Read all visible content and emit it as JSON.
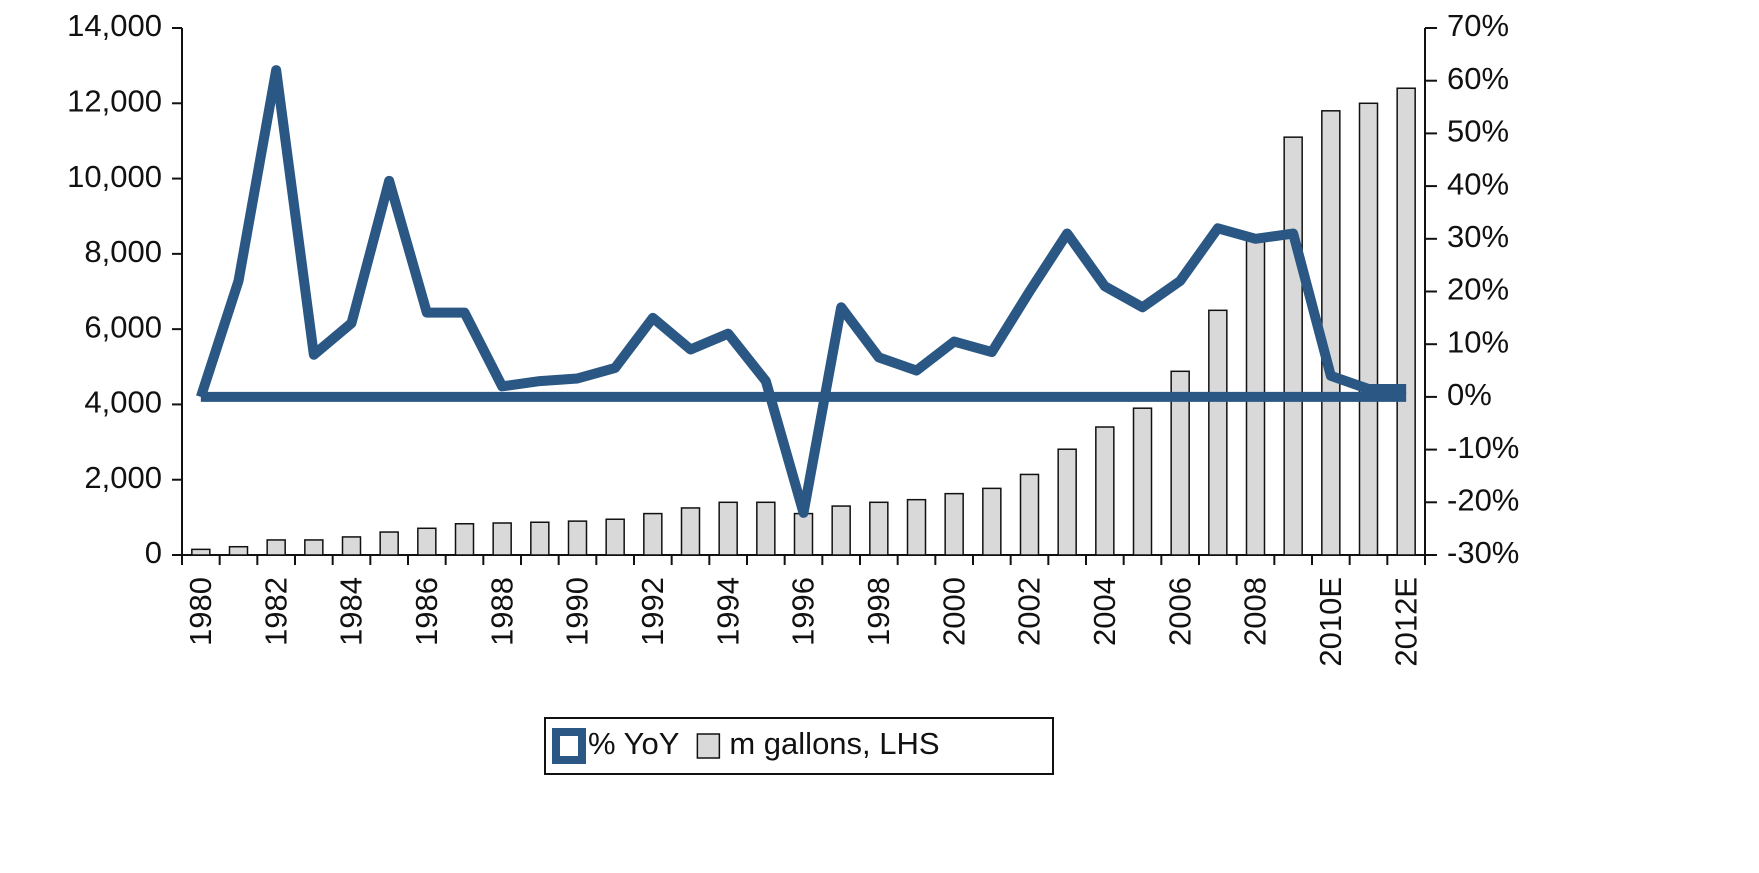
{
  "chart_data": {
    "type": "bar_line",
    "categories": [
      "1980",
      null,
      "1982",
      null,
      "1984",
      null,
      "1986",
      null,
      "1988",
      null,
      "1990",
      null,
      "1992",
      null,
      "1994",
      null,
      "1996",
      null,
      "1998",
      null,
      "2000",
      null,
      "2002",
      null,
      "2004",
      null,
      "2006",
      null,
      "2008",
      null,
      "2010E",
      null,
      "2012E"
    ],
    "series": [
      {
        "name": "% YoY",
        "type": "line",
        "axis": "y2",
        "color": "#2a5783",
        "values": [
          0,
          22,
          62,
          8,
          14,
          41,
          16,
          16,
          2,
          3,
          3.5,
          5.5,
          15,
          9,
          12,
          3,
          -22,
          17,
          7.5,
          5,
          10.5,
          8.5,
          20,
          31,
          21,
          17,
          22,
          32,
          30,
          31,
          4,
          1.5,
          1.5
        ]
      },
      {
        "name": "m gallons, LHS",
        "type": "bar",
        "color": "#d9d9d9",
        "values": [
          150,
          220,
          400,
          400,
          480,
          610,
          710,
          830,
          850,
          870,
          900,
          950,
          1100,
          1250,
          1400,
          1400,
          1100,
          1300,
          1400,
          1470,
          1630,
          1770,
          2140,
          2810,
          3400,
          3900,
          4880,
          6500,
          8500,
          11100,
          11800,
          12000,
          12400
        ]
      }
    ],
    "ylim": [
      0,
      14000
    ],
    "yticks": [
      0,
      {
        "value": 2000,
        "label": "2,000"
      },
      {
        "value": 4000,
        "label": "4,000"
      },
      {
        "value": 6000,
        "label": "6,000"
      },
      {
        "value": 8000,
        "label": "8,000"
      },
      {
        "value": 10000,
        "label": "10,000"
      },
      {
        "value": 12000,
        "label": "12,000"
      },
      {
        "value": 14000,
        "label": "14,000"
      }
    ],
    "y2lim": [
      -30,
      70
    ],
    "y2ticks": [
      {
        "value": -30,
        "label": "-30%"
      },
      {
        "value": -20,
        "label": "-20%"
      },
      {
        "value": -10,
        "label": "-10%"
      },
      {
        "value": 0,
        "label": "0%"
      },
      {
        "value": 10,
        "label": "10%"
      },
      {
        "value": 20,
        "label": "20%"
      },
      {
        "value": 30,
        "label": "30%"
      },
      {
        "value": 40,
        "label": "40%"
      },
      {
        "value": 50,
        "label": "50%"
      },
      {
        "value": 60,
        "label": "60%"
      },
      {
        "value": 70,
        "label": "70%"
      }
    ],
    "legend": "bottom"
  }
}
